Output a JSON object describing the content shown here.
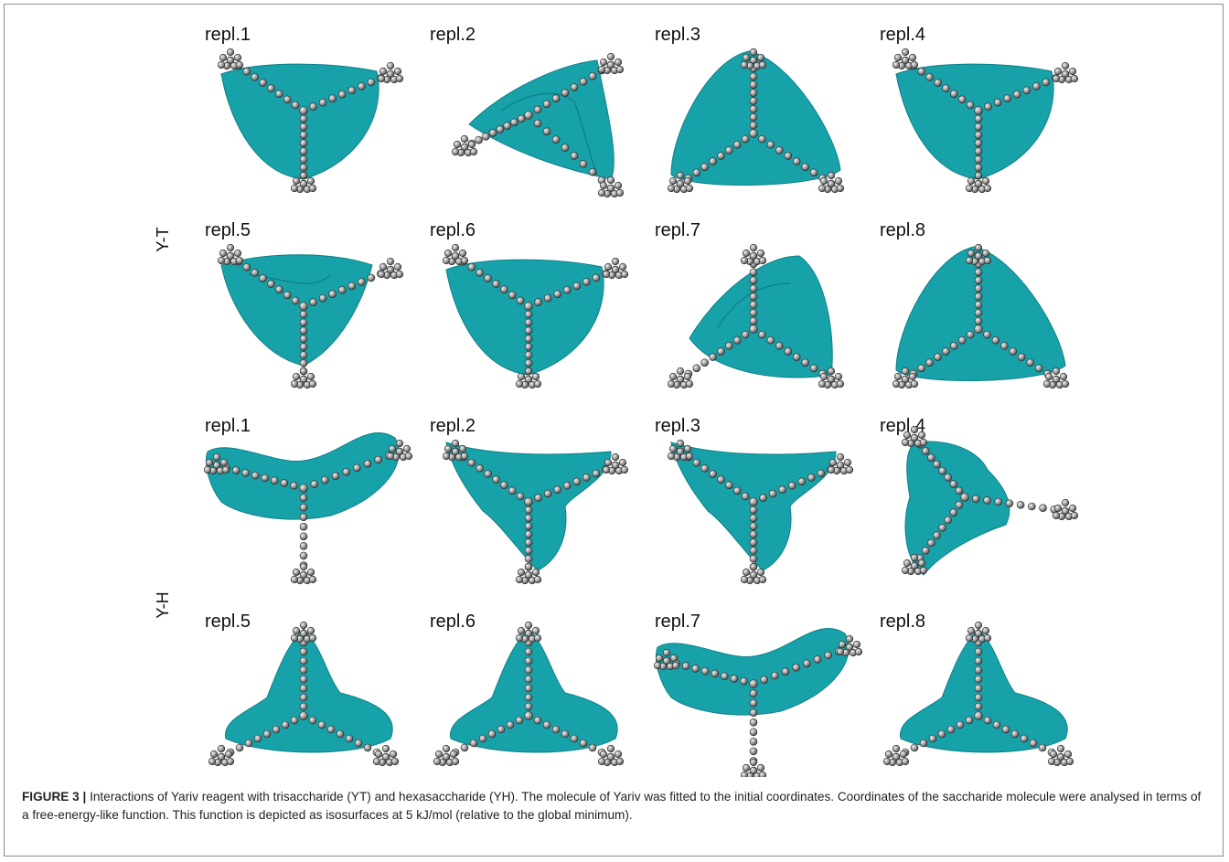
{
  "groups": [
    {
      "label": "Y-T"
    },
    {
      "label": "Y-H"
    }
  ],
  "panels": [
    {
      "label": "repl.1",
      "shape": "tri-down",
      "group": "Y-T"
    },
    {
      "label": "repl.2",
      "shape": "tri-fold",
      "group": "Y-T"
    },
    {
      "label": "repl.3",
      "shape": "tri-up",
      "group": "Y-T"
    },
    {
      "label": "repl.4",
      "shape": "tri-down",
      "group": "Y-T"
    },
    {
      "label": "repl.5",
      "shape": "tri-down-fold",
      "group": "Y-T"
    },
    {
      "label": "repl.6",
      "shape": "tri-down",
      "group": "Y-T"
    },
    {
      "label": "repl.7",
      "shape": "tri-fold-up",
      "group": "Y-T"
    },
    {
      "label": "repl.8",
      "shape": "tri-up",
      "group": "Y-T"
    },
    {
      "label": "repl.1",
      "shape": "boomerang",
      "group": "Y-H"
    },
    {
      "label": "repl.2",
      "shape": "trident",
      "group": "Y-H"
    },
    {
      "label": "repl.3",
      "shape": "trident",
      "group": "Y-H"
    },
    {
      "label": "repl.4",
      "shape": "c-shape",
      "group": "Y-H"
    },
    {
      "label": "repl.5",
      "shape": "blob-up",
      "group": "Y-H"
    },
    {
      "label": "repl.6",
      "shape": "blob-up",
      "group": "Y-H"
    },
    {
      "label": "repl.7",
      "shape": "boomerang",
      "group": "Y-H"
    },
    {
      "label": "repl.8",
      "shape": "blob-up",
      "group": "Y-H"
    }
  ],
  "caption": {
    "figure_id": "FIGURE 3 |",
    "text": "Interactions of Yariv reagent with trisaccharide (YT) and hexasaccharide (YH). The molecule of Yariv was fitted to the initial coordinates. Coordinates of the saccharide molecule were analysed in terms of a free-energy-like function. This function is depicted as isosurfaces at 5 kJ/mol (relative to the global minimum)."
  },
  "colors": {
    "surface": "#17a2aa",
    "atom": "#9a9a9a",
    "frame": "#8c8c8c"
  }
}
